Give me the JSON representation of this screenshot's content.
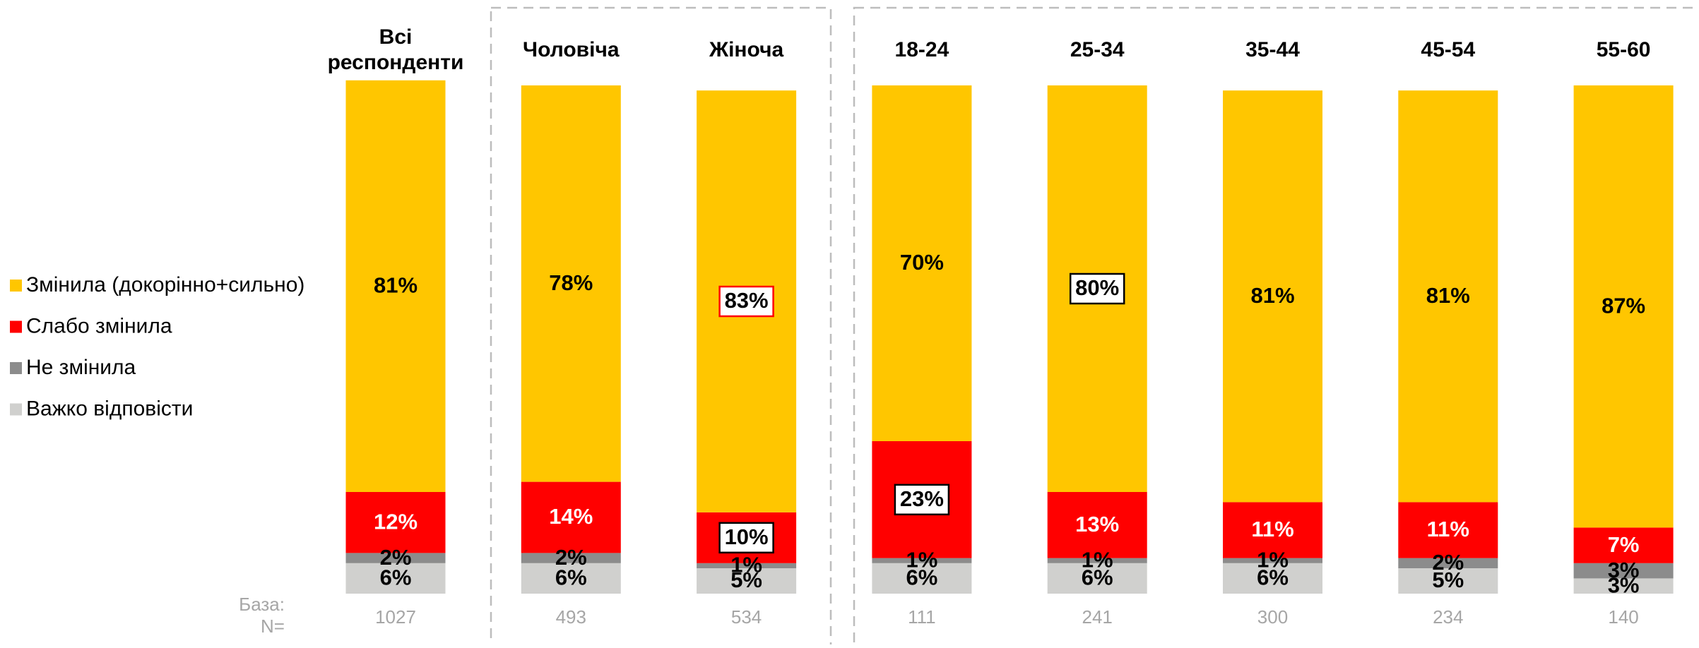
{
  "chart_data": {
    "type": "stacked_bar",
    "categories": [
      "Всі респонденти",
      "Чоловіча",
      "Жіноча",
      "18-24",
      "25-34",
      "35-44",
      "45-54",
      "55-60"
    ],
    "series": [
      {
        "name": "Важко відповісти",
        "color": "#d0d0ce",
        "label_color": "#000",
        "values": [
          6,
          6,
          5,
          6,
          6,
          6,
          5,
          3
        ],
        "label_box": [
          null,
          null,
          null,
          null,
          null,
          null,
          null,
          null
        ]
      },
      {
        "name": "Не змінила",
        "color": "#8c8c8c",
        "label_color": "#000",
        "values": [
          2,
          2,
          1,
          1,
          1,
          1,
          2,
          3
        ],
        "label_box": [
          null,
          null,
          null,
          null,
          null,
          null,
          null,
          null
        ]
      },
      {
        "name": "Слабо змінила",
        "color": "#ff0000",
        "label_color": "#fff",
        "values": [
          12,
          14,
          10,
          23,
          13,
          11,
          11,
          7
        ],
        "label_box": [
          null,
          null,
          "#000",
          "#000",
          null,
          null,
          null,
          null
        ]
      },
      {
        "name": "Змінила (докорінно+сильно)",
        "color": "#ffc600",
        "label_color": "#000",
        "values": [
          81,
          78,
          83,
          70,
          80,
          81,
          81,
          87
        ],
        "label_box": [
          null,
          null,
          "#ff0000",
          null,
          "#000",
          null,
          null,
          null
        ]
      }
    ],
    "value_labels": [
      [
        "6%",
        "6%",
        "5%",
        "6%",
        "6%",
        "6%",
        "5%",
        "3%"
      ],
      [
        "2%",
        "2%",
        "1%",
        "1%",
        "1%",
        "1%",
        "2%",
        "3%"
      ],
      [
        "12%",
        "14%",
        "10%",
        "23%",
        "13%",
        "11%",
        "11%",
        "7%"
      ],
      [
        "81%",
        "78%",
        "83%",
        "70%",
        "80%",
        "81%",
        "81%",
        "87%"
      ]
    ],
    "base_label": [
      "База:",
      "N="
    ],
    "base_n": [
      1027,
      493,
      534,
      111,
      241,
      300,
      234,
      140
    ]
  }
}
